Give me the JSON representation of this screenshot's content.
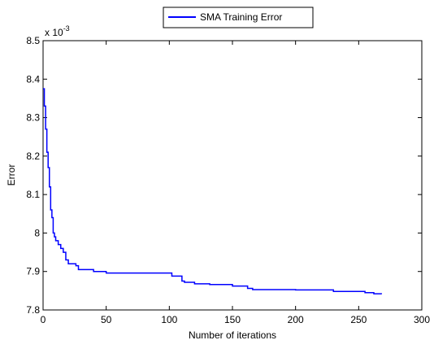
{
  "chart_data": {
    "type": "line",
    "title": "",
    "xlabel": "Number of iterations",
    "ylabel": "Error",
    "scale_label": "x 10",
    "scale_exponent": "-3",
    "xlim": [
      0,
      300
    ],
    "ylim": [
      7.8,
      8.5
    ],
    "xticks": [
      0,
      50,
      100,
      150,
      200,
      250,
      300
    ],
    "yticks": [
      7.8,
      7.9,
      8.0,
      8.1,
      8.2,
      8.3,
      8.4,
      8.5
    ],
    "xtick_labels": [
      "0",
      "50",
      "100",
      "150",
      "200",
      "250",
      "300"
    ],
    "ytick_labels": [
      "7.8",
      "7.9",
      "8",
      "8.1",
      "8.2",
      "8.3",
      "8.4",
      "8.5"
    ],
    "legend_position": "top-center",
    "grid": false,
    "series": [
      {
        "name": "SMA Training Error",
        "color": "#0000ff",
        "step": true,
        "x": [
          0,
          1,
          2,
          3,
          4,
          5,
          6,
          7,
          8,
          9,
          10,
          12,
          14,
          16,
          18,
          20,
          23,
          26,
          28,
          30,
          40,
          50,
          100,
          102,
          110,
          112,
          120,
          132,
          150,
          162,
          166,
          200,
          230,
          255,
          262,
          268
        ],
        "y": [
          8.375,
          8.33,
          8.27,
          8.21,
          8.17,
          8.12,
          8.06,
          8.04,
          8.0,
          7.99,
          7.98,
          7.97,
          7.96,
          7.95,
          7.93,
          7.92,
          7.92,
          7.915,
          7.905,
          7.905,
          7.9,
          7.896,
          7.896,
          7.888,
          7.875,
          7.872,
          7.868,
          7.866,
          7.862,
          7.856,
          7.853,
          7.852,
          7.848,
          7.845,
          7.842,
          7.841
        ]
      }
    ]
  }
}
